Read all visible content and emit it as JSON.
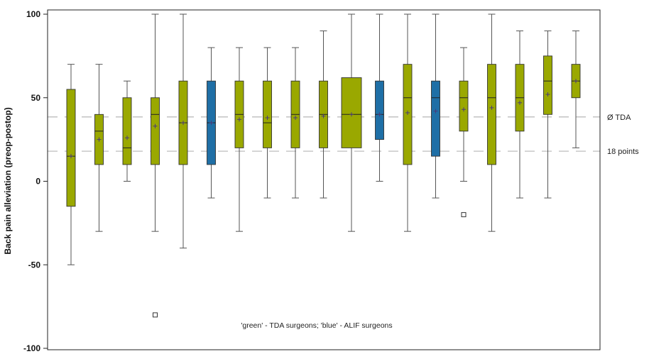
{
  "chart_data": {
    "type": "box",
    "ylabel": "Back pain alleviation (preop-postop)",
    "ylim": [
      -100,
      100
    ],
    "y_ticks": [
      {
        "value": 100,
        "label": "100"
      },
      {
        "value": 50,
        "label": "50"
      },
      {
        "value": 0,
        "label": "0"
      },
      {
        "value": -50,
        "label": "-50"
      },
      {
        "value": -100,
        "label": "-100"
      }
    ],
    "reference_lines": [
      {
        "value": 38.5,
        "label": "Ø TDA"
      },
      {
        "value": 18,
        "label": "18 points"
      }
    ],
    "annotation": "'green' - TDA surgeons; 'blue' - ALIF surgeons",
    "colors": {
      "green": "#9aa800",
      "blue": "#1f6fa6",
      "axis": "#222222",
      "whisker": "#555555",
      "reference": "#bdbdbd"
    },
    "series": [
      {
        "group": "green",
        "whisker_low": -50,
        "q1": -15,
        "median": 15,
        "q3": 55,
        "whisker_high": 70,
        "mean": 15,
        "outliers": []
      },
      {
        "group": "green",
        "whisker_low": -30,
        "q1": 10,
        "median": 30,
        "q3": 40,
        "whisker_high": 70,
        "mean": 25,
        "outliers": []
      },
      {
        "group": "green",
        "whisker_low": 0,
        "q1": 10,
        "median": 20,
        "q3": 50,
        "whisker_high": 60,
        "mean": 26,
        "outliers": []
      },
      {
        "group": "green",
        "whisker_low": -30,
        "q1": 10,
        "median": 40,
        "q3": 50,
        "whisker_high": 100,
        "mean": 33,
        "outliers": [
          -80
        ]
      },
      {
        "group": "green",
        "whisker_low": -40,
        "q1": 10,
        "median": 35,
        "q3": 60,
        "whisker_high": 100,
        "mean": 35,
        "outliers": []
      },
      {
        "group": "blue",
        "whisker_low": -10,
        "q1": 10,
        "median": 35,
        "q3": 60,
        "whisker_high": 80,
        "mean": 35,
        "outliers": []
      },
      {
        "group": "green",
        "whisker_low": -30,
        "q1": 20,
        "median": 40,
        "q3": 60,
        "whisker_high": 80,
        "mean": 37,
        "outliers": []
      },
      {
        "group": "green",
        "whisker_low": -10,
        "q1": 20,
        "median": 35,
        "q3": 60,
        "whisker_high": 80,
        "mean": 38,
        "outliers": []
      },
      {
        "group": "green",
        "whisker_low": -10,
        "q1": 20,
        "median": 40,
        "q3": 60,
        "whisker_high": 80,
        "mean": 38,
        "outliers": []
      },
      {
        "group": "green",
        "whisker_low": -10,
        "q1": 20,
        "median": 40,
        "q3": 60,
        "whisker_high": 90,
        "mean": 39,
        "outliers": []
      },
      {
        "group": "green",
        "whisker_low": -30,
        "q1": 20,
        "median": 40,
        "q3": 62,
        "whisker_high": 100,
        "mean": 40,
        "outliers": []
      },
      {
        "group": "blue",
        "whisker_low": 0,
        "q1": 25,
        "median": 40,
        "q3": 60,
        "whisker_high": 100,
        "mean": 40,
        "outliers": []
      },
      {
        "group": "green",
        "whisker_low": -30,
        "q1": 10,
        "median": 50,
        "q3": 70,
        "whisker_high": 100,
        "mean": 41,
        "outliers": []
      },
      {
        "group": "blue",
        "whisker_low": -10,
        "q1": 15,
        "median": 50,
        "q3": 60,
        "whisker_high": 100,
        "mean": 42,
        "outliers": []
      },
      {
        "group": "green",
        "whisker_low": 0,
        "q1": 30,
        "median": 50,
        "q3": 60,
        "whisker_high": 80,
        "mean": 43,
        "outliers": [
          -20
        ]
      },
      {
        "group": "green",
        "whisker_low": -30,
        "q1": 10,
        "median": 50,
        "q3": 70,
        "whisker_high": 100,
        "mean": 44,
        "outliers": []
      },
      {
        "group": "green",
        "whisker_low": -10,
        "q1": 30,
        "median": 50,
        "q3": 70,
        "whisker_high": 90,
        "mean": 47,
        "outliers": []
      },
      {
        "group": "green",
        "whisker_low": -10,
        "q1": 40,
        "median": 60,
        "q3": 75,
        "whisker_high": 90,
        "mean": 52,
        "outliers": []
      },
      {
        "group": "green",
        "whisker_low": 20,
        "q1": 50,
        "median": 60,
        "q3": 70,
        "whisker_high": 90,
        "mean": 60,
        "outliers": []
      }
    ]
  }
}
